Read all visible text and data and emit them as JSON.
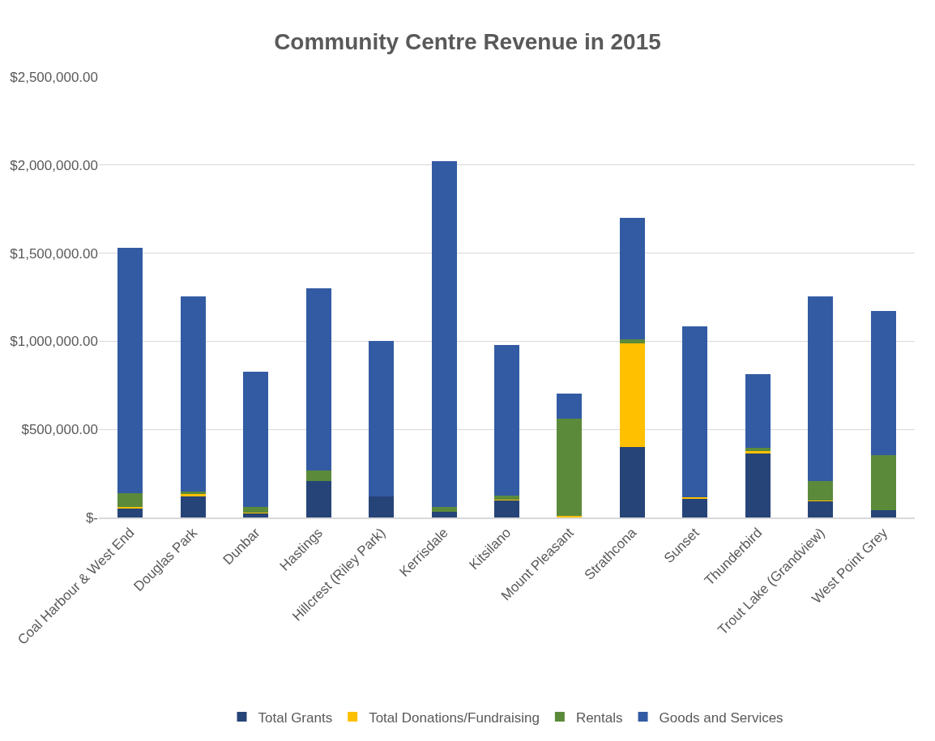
{
  "chart_data": {
    "type": "bar",
    "title": "Community Centre Revenue in 2015",
    "stacked": true,
    "grid": "y",
    "legend": "bottom",
    "categories": [
      "Coal Harbour & West End",
      "Douglas Park",
      "Dunbar",
      "Hastings",
      "Hillcrest (Riley Park)",
      "Kerrisdale",
      "Kitsilano",
      "Mount Pleasant",
      "Strathcona",
      "Sunset",
      "Thunderbird",
      "Trout Lake (Grandview)",
      "West Point Grey"
    ],
    "series": [
      {
        "name": "Total Grants",
        "color": "#264478",
        "values": [
          55000,
          120000,
          25000,
          206000,
          118000,
          33000,
          97000,
          0,
          400000,
          106000,
          365000,
          94000,
          41000
        ]
      },
      {
        "name": "Total Donations/Fundraising",
        "color": "#ffc000",
        "values": [
          5000,
          12000,
          2000,
          0,
          0,
          0,
          3000,
          8000,
          590000,
          10000,
          10000,
          2000,
          0
        ]
      },
      {
        "name": "Rentals",
        "color": "#5b8a3a",
        "values": [
          80000,
          14000,
          35000,
          61000,
          0,
          27000,
          24000,
          552000,
          20000,
          0,
          19000,
          109000,
          313000
        ]
      },
      {
        "name": "Goods and Services",
        "color": "#335ba3",
        "values": [
          1390000,
          1109000,
          766000,
          1033000,
          882000,
          1960000,
          856000,
          145000,
          690000,
          969000,
          419000,
          1050000,
          818000
        ]
      }
    ],
    "ylim": [
      0,
      2500000
    ],
    "yticks": [
      {
        "value": 0,
        "label": "$-"
      },
      {
        "value": 500000,
        "label": "$500,000.00"
      },
      {
        "value": 1000000,
        "label": "$1,000,000.00"
      },
      {
        "value": 1500000,
        "label": "$1,500,000.00"
      },
      {
        "value": 2000000,
        "label": "$2,000,000.00"
      },
      {
        "value": 2500000,
        "label": "$2,500,000.00"
      }
    ]
  }
}
